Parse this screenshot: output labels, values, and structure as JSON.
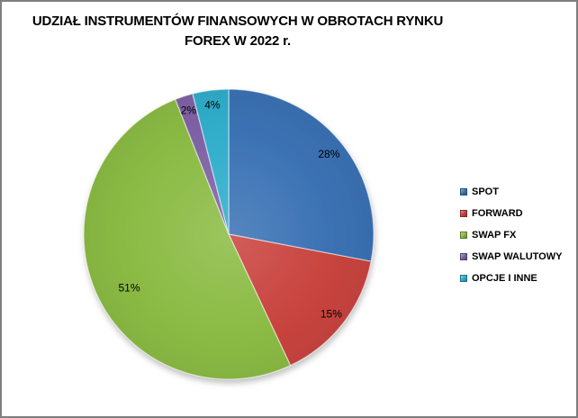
{
  "frame": {
    "background": "#ffffff",
    "border_color": "#7f7f7f"
  },
  "title": {
    "line1": "UDZIAŁ INSTRUMENTÓW FINANSOWYCH W OBROTACH RYNKU",
    "line2": "FOREX W 2022 r."
  },
  "chart_data": {
    "type": "pie",
    "title": "UDZIAŁ INSTRUMENTÓW FINANSOWYCH W OBROTACH RYNKU FOREX W 2022 r.",
    "series": [
      {
        "name": "SPOT",
        "value": 28,
        "label": "28%",
        "color": "#3B72B4"
      },
      {
        "name": "FORWARD",
        "value": 15,
        "label": "15%",
        "color": "#C9443F"
      },
      {
        "name": "SWAP FX",
        "value": 51,
        "label": "51%",
        "color": "#8BBB44"
      },
      {
        "name": "SWAP WALUTOWY",
        "value": 2,
        "label": "2%",
        "color": "#7F62A5"
      },
      {
        "name": "OPCJE I INNE",
        "value": 4,
        "label": "4%",
        "color": "#30AECB"
      }
    ],
    "start_angle_deg": 0,
    "direction": "clockwise",
    "legend_position": "right",
    "data_labels": "percent, inside end",
    "style": "3d-bevel with drop shadow, white slice separators"
  }
}
